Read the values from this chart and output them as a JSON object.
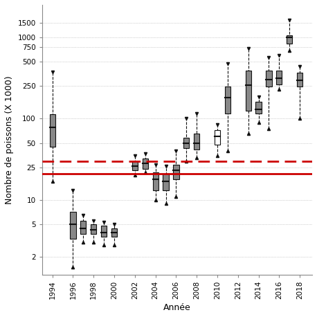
{
  "xlabel": "Année",
  "ylabel": "Nombre de poissons (X 1000)",
  "years": [
    1994,
    1996,
    1997,
    1998,
    1999,
    2000,
    2002,
    2003,
    2004,
    2005,
    2006,
    2007,
    2008,
    2010,
    2011,
    2013,
    2014,
    2015,
    2016,
    2017,
    2018
  ],
  "boxdata": {
    "1994": {
      "p5": 17,
      "q1": 45,
      "median": 78,
      "q3": 112,
      "p95": 370
    },
    "1996": {
      "p5": 1.5,
      "q1": 3.3,
      "median": 5.0,
      "q3": 7.2,
      "p95": 13
    },
    "1997": {
      "p5": 3.0,
      "q1": 3.8,
      "median": 4.5,
      "q3": 5.5,
      "p95": 6.5
    },
    "1998": {
      "p5": 3.0,
      "q1": 3.8,
      "median": 4.3,
      "q3": 5.0,
      "p95": 5.5
    },
    "1999": {
      "p5": 2.8,
      "q1": 3.5,
      "median": 4.0,
      "q3": 4.8,
      "p95": 5.3
    },
    "2000": {
      "p5": 2.8,
      "q1": 3.5,
      "median": 4.0,
      "q3": 4.5,
      "p95": 5.0
    },
    "2002": {
      "p5": 20,
      "q1": 23,
      "median": 26,
      "q3": 30,
      "p95": 35
    },
    "2003": {
      "p5": 22,
      "q1": 24,
      "median": 28,
      "q3": 32,
      "p95": 37
    },
    "2004": {
      "p5": 10,
      "q1": 13,
      "median": 18,
      "q3": 22,
      "p95": 27
    },
    "2005": {
      "p5": 9,
      "q1": 13,
      "median": 17,
      "q3": 21,
      "p95": 26
    },
    "2006": {
      "p5": 11,
      "q1": 18,
      "median": 23,
      "q3": 27,
      "p95": 40
    },
    "2007": {
      "p5": 30,
      "q1": 43,
      "median": 50,
      "q3": 58,
      "p95": 100
    },
    "2008": {
      "p5": 33,
      "q1": 42,
      "median": 50,
      "q3": 65,
      "p95": 115
    },
    "2010": {
      "p5": 35,
      "q1": 48,
      "median": 60,
      "q3": 72,
      "p95": 85
    },
    "2011": {
      "p5": 40,
      "q1": 115,
      "median": 180,
      "q3": 245,
      "p95": 470
    },
    "2013": {
      "p5": 65,
      "q1": 125,
      "median": 255,
      "q3": 390,
      "p95": 720
    },
    "2014": {
      "p5": 90,
      "q1": 115,
      "median": 130,
      "q3": 160,
      "p95": 185
    },
    "2015": {
      "p5": 75,
      "q1": 245,
      "median": 300,
      "q3": 390,
      "p95": 560
    },
    "2016": {
      "p5": 230,
      "q1": 260,
      "median": 310,
      "q3": 385,
      "p95": 600
    },
    "2017": {
      "p5": 680,
      "q1": 840,
      "median": 990,
      "q3": 1060,
      "p95": 1620
    },
    "2018": {
      "p5": 100,
      "q1": 245,
      "median": 295,
      "q3": 365,
      "p95": 435
    }
  },
  "hollow_years": [
    2010
  ],
  "hline_solid": 21,
  "hline_dashed": 30,
  "hline_solid_color": "#cc0000",
  "hline_dashed_color": "#cc0000",
  "box_facecolor": "#888888",
  "box_edgecolor": "#111111",
  "ylim_log": [
    1.2,
    2500
  ],
  "yticks": [
    2,
    5,
    10,
    25,
    50,
    100,
    250,
    500,
    750,
    1000,
    1500
  ],
  "xtick_years": [
    1994,
    1996,
    1998,
    2000,
    2002,
    2004,
    2006,
    2008,
    2010,
    2012,
    2014,
    2016,
    2018
  ],
  "xmin": 1993.0,
  "xmax": 2019.2,
  "box_width": 0.55,
  "grid_color": "#aaaaaa",
  "spine_color": "#888888"
}
